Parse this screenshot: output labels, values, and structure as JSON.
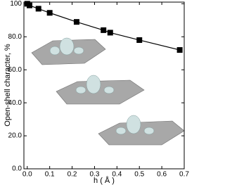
{
  "chart_data": {
    "type": "line",
    "x_label": "h ( Å )",
    "y_label": "Open-shell character, %",
    "x": [
      0.0,
      0.01,
      0.05,
      0.1,
      0.22,
      0.34,
      0.37,
      0.5,
      0.68
    ],
    "series": [
      {
        "color": "#000000",
        "values": [
          100,
          99,
          97,
          94.5,
          89,
          84,
          82.5,
          78,
          72
        ]
      }
    ],
    "xlim": [
      -0.015,
      0.7
    ],
    "ylim": [
      0,
      101
    ],
    "xticks": [
      {
        "value": 0,
        "label": "0.0"
      },
      0.1,
      0.2,
      0.3,
      0.4,
      0.5,
      0.6,
      0.7
    ],
    "yticks": [
      {
        "value": 0,
        "label": "0.0"
      },
      {
        "value": 20,
        "label": "20.0"
      },
      {
        "value": 40,
        "label": "40.0"
      },
      {
        "value": 60,
        "label": "60.0"
      },
      {
        "value": 80,
        "label": "80.0"
      },
      100
    ],
    "grid": false
  }
}
